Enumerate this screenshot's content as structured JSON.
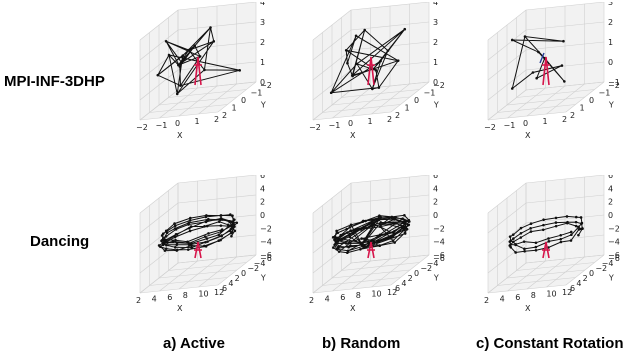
{
  "rows": [
    {
      "label": "MPI-INF-3DHP"
    },
    {
      "label": "Dancing"
    }
  ],
  "columns": [
    {
      "label": "a) Active"
    },
    {
      "label": "b) Random"
    },
    {
      "label": "c)  Constant Rotation"
    }
  ],
  "axes": {
    "x_name": "X",
    "y_name": "Y",
    "z_name": "Z"
  },
  "panels": [
    {
      "name": "mpi-active",
      "x_ticks": [
        "−2",
        "−1",
        "0",
        "1",
        "2"
      ],
      "y_ticks": [
        "2",
        "1",
        "0",
        "−1",
        "−2"
      ],
      "z_ticks": [
        "4",
        "3",
        "2",
        "1",
        "0"
      ]
    },
    {
      "name": "mpi-random",
      "x_ticks": [
        "−2",
        "−1",
        "0",
        "1",
        "2"
      ],
      "y_ticks": [
        "2",
        "1",
        "0",
        "−1",
        "−2"
      ],
      "z_ticks": [
        "4",
        "3",
        "2",
        "1",
        "0"
      ]
    },
    {
      "name": "mpi-constant",
      "x_ticks": [
        "−2",
        "−1",
        "0",
        "1",
        "2"
      ],
      "y_ticks": [
        "2",
        "1",
        "0",
        "−1",
        "−2"
      ],
      "z_ticks": [
        "3",
        "2",
        "1",
        "0",
        "−1"
      ]
    },
    {
      "name": "dance-active",
      "x_ticks": [
        "2",
        "4",
        "6",
        "8",
        "10",
        "12"
      ],
      "y_ticks": [
        "6",
        "4",
        "2",
        "0",
        "−2",
        "−4",
        "−6"
      ],
      "z_ticks": [
        "6",
        "4",
        "2",
        "0",
        "−2",
        "−4",
        "−6"
      ]
    },
    {
      "name": "dance-random",
      "x_ticks": [
        "2",
        "4",
        "6",
        "8",
        "10",
        "12"
      ],
      "y_ticks": [
        "6",
        "4",
        "2",
        "0",
        "−2",
        "−4",
        "−6"
      ],
      "z_ticks": [
        "6",
        "4",
        "2",
        "0",
        "−2",
        "−4",
        "−6"
      ]
    },
    {
      "name": "dance-constant",
      "x_ticks": [
        "2",
        "4",
        "6",
        "8",
        "10",
        "12"
      ],
      "y_ticks": [
        "6",
        "4",
        "2",
        "0",
        "−2",
        "−4",
        "−6"
      ],
      "z_ticks": [
        "6",
        "4",
        "2",
        "0",
        "−2",
        "−4",
        "−6"
      ]
    }
  ],
  "colors": {
    "trajectory": "#111111",
    "grid": "#d0d0d0",
    "pane": "#f2f2f2",
    "human": "#d6154a",
    "human_alt": "#2a3f9a"
  }
}
